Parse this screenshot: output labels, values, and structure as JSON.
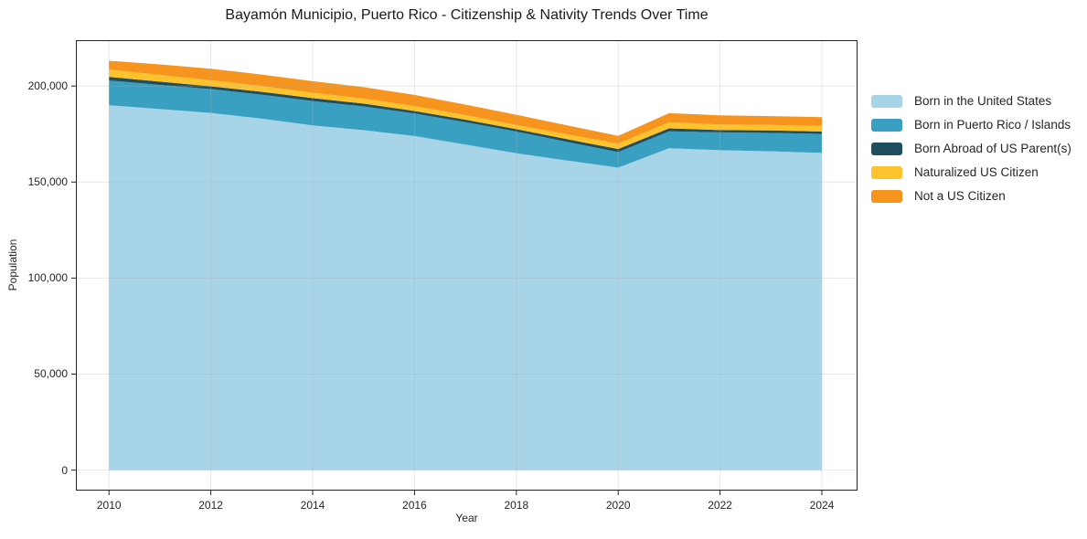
{
  "chart_data": {
    "type": "area",
    "stacked": true,
    "title": "Bayamón Municipio, Puerto Rico - Citizenship & Nativity Trends Over Time",
    "xlabel": "Year",
    "ylabel": "Population",
    "x": [
      2010,
      2011,
      2012,
      2013,
      2014,
      2015,
      2016,
      2017,
      2018,
      2019,
      2020,
      2021,
      2022,
      2023,
      2024
    ],
    "series": [
      {
        "name": "Born in the United States",
        "color": "#a8d4e8",
        "values": [
          190000,
          188000,
          186000,
          183000,
          179500,
          177000,
          174000,
          169500,
          165000,
          161200,
          157500,
          167600,
          166600,
          166000,
          165200
        ]
      },
      {
        "name": "Born in Puerto Rico / Islands",
        "color": "#3aa0c1",
        "values": [
          12900,
          12600,
          12400,
          12500,
          12700,
          12400,
          11700,
          11700,
          11300,
          9700,
          8100,
          8800,
          9300,
          9600,
          9900
        ]
      },
      {
        "name": "Born Abroad of US Parent(s)",
        "color": "#1f4e5f",
        "values": [
          1900,
          1700,
          1450,
          1500,
          1550,
          1450,
          1300,
          1300,
          1250,
          1400,
          1600,
          1550,
          1200,
          1300,
          1250
        ]
      },
      {
        "name": "Naturalized US Citizen",
        "color": "#fcc32d",
        "values": [
          3800,
          3500,
          3150,
          3000,
          2750,
          2650,
          2550,
          2350,
          2200,
          2500,
          2850,
          3200,
          2900,
          2850,
          2850
        ]
      },
      {
        "name": "Not a US Citizen",
        "color": "#f7941e",
        "values": [
          4600,
          5500,
          6000,
          6000,
          6050,
          5950,
          5850,
          5500,
          5300,
          4700,
          4000,
          4750,
          4750,
          4600,
          4600
        ]
      }
    ],
    "xticks": [
      2010,
      2012,
      2014,
      2016,
      2018,
      2020,
      2022,
      2024
    ],
    "xtick_labels": [
      "2010",
      "2012",
      "2014",
      "2016",
      "2018",
      "2020",
      "2022",
      "2024"
    ],
    "yticks": [
      0,
      50000,
      100000,
      150000,
      200000
    ],
    "ytick_labels": [
      "0",
      "50,000",
      "100,000",
      "150,000",
      "200,000"
    ],
    "xlim": [
      2009.35,
      2024.7
    ],
    "ylim": [
      -10661,
      223881
    ],
    "grid": true,
    "grid_color": "#b0b0b0",
    "grid_opacity": 0.3,
    "spine_color": "#222222",
    "legend_position": "right"
  }
}
